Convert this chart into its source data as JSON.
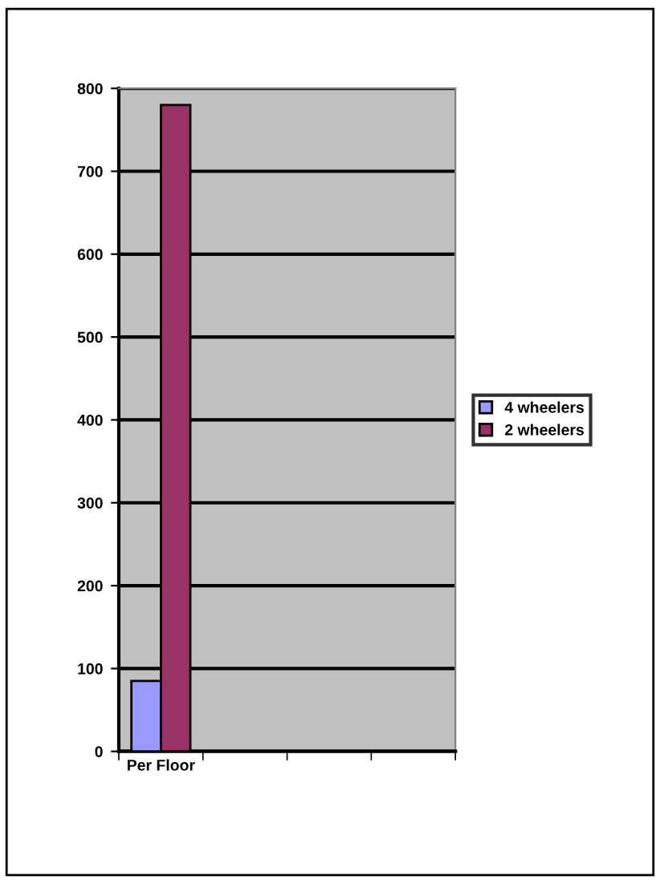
{
  "chart_data": {
    "type": "bar",
    "categories": [
      "Per Floor",
      null,
      null,
      null
    ],
    "series": [
      {
        "name": "4 wheelers",
        "color": "#9999ff",
        "values": [
          85,
          null,
          null,
          null
        ]
      },
      {
        "name": "2 wheelers",
        "color": "#993366",
        "values": [
          780,
          null,
          null,
          null
        ]
      }
    ],
    "ylim": [
      0,
      800
    ],
    "yticks": [
      0,
      100,
      200,
      300,
      400,
      500,
      600,
      700,
      800
    ],
    "grid": "y",
    "legend": "right"
  }
}
